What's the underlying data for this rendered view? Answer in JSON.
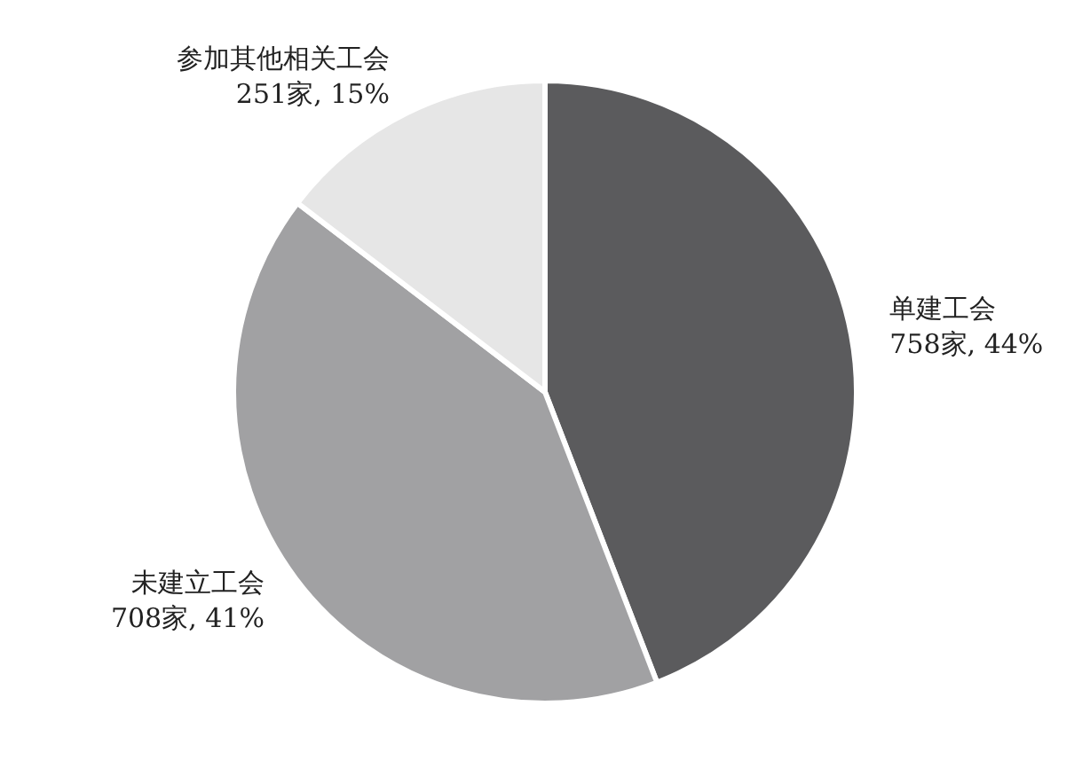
{
  "chart_data": {
    "type": "pie",
    "categories": [
      "单建工会",
      "未建立工会",
      "参加其他相关工会"
    ],
    "values": [
      758,
      708,
      251
    ],
    "colors": [
      "#5b5b5d",
      "#a1a1a3",
      "#e6e6e6"
    ],
    "value_labels": [
      "758家, 44%",
      "708家, 41%",
      "251家, 15%"
    ],
    "legend": false
  }
}
